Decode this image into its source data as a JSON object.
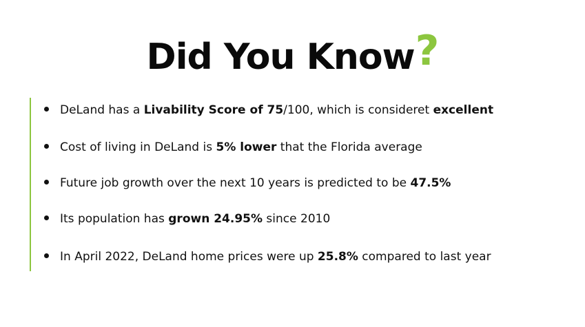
{
  "title": {
    "text": "Did You Know",
    "mark": "?"
  },
  "colors": {
    "accent": "#8cc63f",
    "text": "#111111"
  },
  "facts": [
    {
      "parts": [
        "DeLand has a ",
        "Livability Score of 75",
        "/100, which is consideret ",
        "excellent",
        ""
      ]
    },
    {
      "parts": [
        "Cost of living in DeLand is ",
        "5% lower",
        " that the Florida average"
      ]
    },
    {
      "parts": [
        "Future job growth over the next 10 years is predicted to be ",
        "47.5%",
        ""
      ]
    },
    {
      "parts": [
        "Its population has ",
        "grown 24.95%",
        " since 2010"
      ]
    },
    {
      "parts": [
        "In April 2022, DeLand home prices were up ",
        "25.8%",
        " compared to last year"
      ]
    }
  ]
}
